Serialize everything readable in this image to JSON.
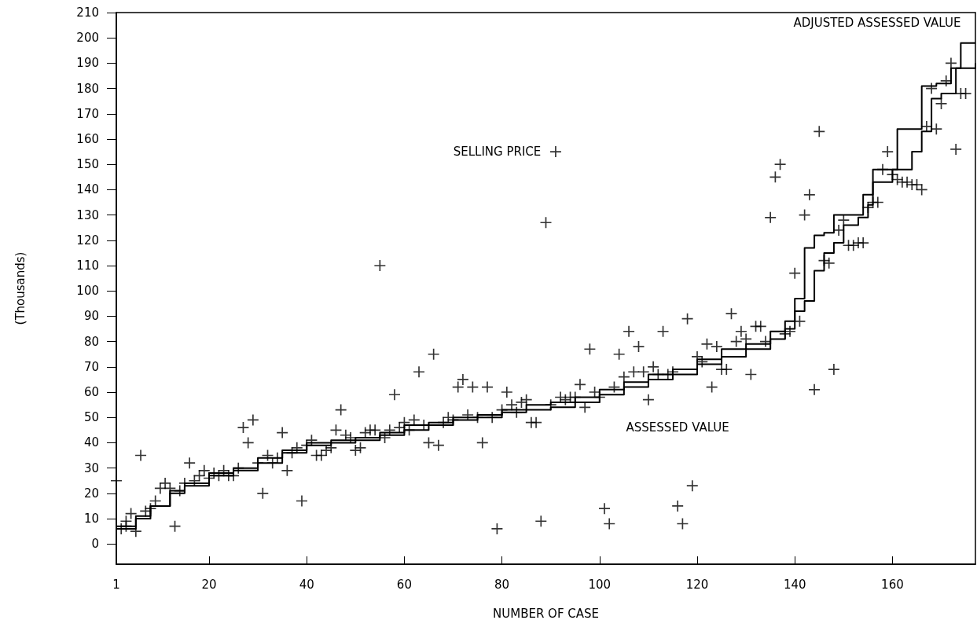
{
  "chart_data": {
    "type": "scatter",
    "xlabel": "NUMBER OF CASE",
    "ylabel": "(Thousands)",
    "xlim": [
      1,
      177
    ],
    "xticks": [
      1,
      20,
      40,
      60,
      80,
      100,
      120,
      140,
      160
    ],
    "ylim": [
      -8,
      210
    ],
    "yticks": [
      0,
      10,
      20,
      30,
      40,
      50,
      60,
      70,
      80,
      90,
      100,
      110,
      120,
      130,
      140,
      150,
      160,
      170,
      180,
      190,
      200,
      210
    ],
    "grid": false,
    "legend": false,
    "series": [
      {
        "name": "SELLING PRICE",
        "marker": "cross",
        "color": "#000000",
        "x": [
          1,
          2,
          3,
          3,
          4,
          5,
          6,
          7,
          8,
          9,
          10,
          11,
          12,
          13,
          14,
          15,
          16,
          17,
          18,
          19,
          20,
          21,
          22,
          23,
          24,
          25,
          26,
          27,
          28,
          29,
          30,
          31,
          32,
          33,
          34,
          35,
          36,
          37,
          38,
          39,
          40,
          41,
          42,
          43,
          44,
          45,
          46,
          47,
          48,
          49,
          50,
          51,
          52,
          53,
          54,
          55,
          56,
          57,
          58,
          59,
          60,
          61,
          62,
          63,
          64,
          65,
          66,
          67,
          68,
          69,
          70,
          71,
          72,
          73,
          74,
          75,
          76,
          77,
          78,
          79,
          80,
          81,
          82,
          83,
          84,
          85,
          86,
          87,
          88,
          89,
          90,
          91,
          92,
          93,
          94,
          95,
          96,
          97,
          98,
          99,
          100,
          101,
          102,
          103,
          104,
          105,
          106,
          107,
          108,
          109,
          110,
          111,
          112,
          113,
          114,
          115,
          116,
          117,
          118,
          119,
          120,
          121,
          122,
          123,
          124,
          125,
          126,
          127,
          128,
          129,
          130,
          131,
          132,
          133,
          134,
          135,
          136,
          137,
          138,
          139,
          140,
          141,
          142,
          143,
          144,
          145,
          146,
          147,
          148,
          149,
          150,
          151,
          152,
          153,
          154,
          155,
          156,
          157,
          158,
          159,
          160,
          161,
          162,
          163,
          164,
          165,
          166,
          167,
          168,
          169,
          170,
          171,
          172,
          173,
          174,
          175
        ],
        "values": [
          25,
          6,
          9,
          7,
          12,
          5,
          35,
          13,
          14,
          17,
          22,
          24,
          22,
          7,
          21,
          24,
          32,
          25,
          27,
          29,
          26,
          28,
          27,
          29,
          27,
          27,
          30,
          46,
          40,
          49,
          32,
          20,
          35,
          32,
          34,
          44,
          29,
          36,
          38,
          17,
          39,
          41,
          35,
          35,
          37,
          38,
          45,
          53,
          43,
          42,
          37,
          38,
          44,
          45,
          45,
          110,
          42,
          45,
          59,
          46,
          48,
          45,
          49,
          68,
          47,
          40,
          75,
          39,
          48,
          50,
          49,
          62,
          65,
          51,
          62,
          50,
          40,
          62,
          50,
          6,
          53,
          60,
          55,
          52,
          56,
          57,
          48,
          48,
          9,
          127,
          55,
          155,
          58,
          57,
          58,
          58,
          63,
          54,
          77,
          60,
          58,
          14,
          8,
          62,
          75,
          66,
          84,
          68,
          78,
          68,
          57,
          70,
          67,
          84,
          67,
          68,
          15,
          8,
          89,
          23,
          74,
          72,
          79,
          62,
          78,
          69,
          69,
          91,
          80,
          84,
          81,
          67,
          86,
          86,
          80,
          129,
          145,
          150,
          83,
          84,
          107,
          88,
          130,
          138,
          61,
          163,
          112,
          111,
          69,
          124,
          128,
          118,
          118,
          119,
          119,
          133,
          135,
          135,
          148,
          155,
          146,
          144,
          143,
          143,
          142,
          142,
          140,
          165,
          180,
          164,
          174,
          183,
          190,
          156,
          178,
          178
        ]
      },
      {
        "name": "ASSESSED VALUE",
        "type": "step",
        "marker": "none",
        "line_style": "solid",
        "color": "#000000",
        "x": [
          1,
          5,
          8,
          12,
          15,
          20,
          25,
          30,
          35,
          40,
          45,
          50,
          55,
          60,
          65,
          70,
          75,
          80,
          85,
          90,
          95,
          100,
          105,
          110,
          115,
          120,
          125,
          130,
          135,
          138,
          140,
          142,
          144,
          146,
          148,
          150,
          153,
          155,
          156,
          160,
          164,
          166,
          168,
          170,
          173,
          177
        ],
        "values": [
          6,
          10,
          15,
          20,
          23,
          27,
          29,
          32,
          36,
          39,
          40,
          41,
          43,
          45,
          47,
          49,
          50,
          52,
          53,
          54,
          56,
          59,
          62,
          65,
          67,
          71,
          74,
          77,
          81,
          85,
          92,
          96,
          108,
          115,
          119,
          126,
          129,
          134,
          143,
          148,
          155,
          163,
          176,
          178,
          188,
          190
        ]
      },
      {
        "name": "ADJUSTED ASSESSED VALUE",
        "type": "step",
        "marker": "none",
        "line_style": "solid",
        "color": "#000000",
        "x": [
          1,
          5,
          8,
          12,
          15,
          20,
          25,
          30,
          35,
          40,
          45,
          50,
          55,
          60,
          65,
          70,
          75,
          80,
          85,
          90,
          95,
          100,
          105,
          110,
          115,
          120,
          125,
          130,
          135,
          138,
          140,
          142,
          144,
          146,
          148,
          152,
          154,
          156,
          159,
          161,
          164,
          166,
          169,
          172,
          174,
          177
        ],
        "values": [
          7,
          11,
          15,
          21,
          24,
          28,
          30,
          34,
          37,
          40,
          41,
          42,
          44,
          47,
          48,
          50,
          51,
          53,
          55,
          56,
          58,
          61,
          64,
          67,
          69,
          73,
          77,
          79,
          84,
          88,
          97,
          117,
          122,
          123,
          130,
          130,
          138,
          148,
          148,
          164,
          164,
          181,
          182,
          188,
          198,
          198
        ]
      }
    ]
  }
}
